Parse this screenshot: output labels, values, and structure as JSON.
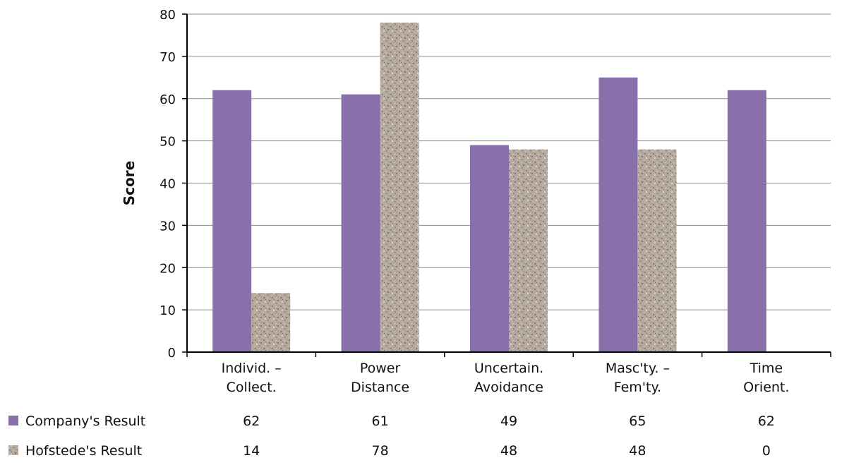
{
  "chart_data": {
    "type": "bar",
    "title": "",
    "xlabel": "",
    "ylabel": "Score",
    "ylim": [
      0,
      80
    ],
    "yticks": [
      0,
      10,
      20,
      30,
      40,
      50,
      60,
      70,
      80
    ],
    "grid": true,
    "legend_placement": "bottom-left (data table)",
    "categories": [
      [
        "Individ. –",
        "Collect."
      ],
      [
        "Power",
        "Distance"
      ],
      [
        "Uncertain.",
        "Avoidance"
      ],
      [
        "Masc'ty. –",
        "Fem'ty."
      ],
      [
        "Time",
        "Orient."
      ]
    ],
    "series": [
      {
        "name": "Company's Result",
        "values": [
          62,
          61,
          49,
          65,
          62
        ],
        "color": "#8a70ab",
        "pattern": "solid"
      },
      {
        "name": "Hofstede's Result",
        "values": [
          14,
          78,
          48,
          48,
          0
        ],
        "color": "#b3a89b",
        "pattern": "granite-texture"
      }
    ]
  }
}
